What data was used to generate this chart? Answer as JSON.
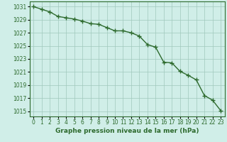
{
  "x": [
    0,
    1,
    2,
    3,
    4,
    5,
    6,
    7,
    8,
    9,
    10,
    11,
    12,
    13,
    14,
    15,
    16,
    17,
    18,
    19,
    20,
    21,
    22,
    23
  ],
  "y": [
    1031.0,
    1030.6,
    1030.2,
    1029.5,
    1029.3,
    1029.1,
    1028.8,
    1028.4,
    1028.3,
    1027.8,
    1027.3,
    1027.3,
    1027.0,
    1026.5,
    1025.2,
    1024.8,
    1022.5,
    1022.4,
    1021.1,
    1020.5,
    1019.8,
    1017.4,
    1016.7,
    1015.1
  ],
  "line_color": "#2d6a2d",
  "marker": "+",
  "marker_size": 4,
  "line_width": 1.0,
  "bg_color": "#d0eee8",
  "grid_color": "#a0c8bc",
  "ylabel_ticks": [
    1015,
    1017,
    1019,
    1021,
    1023,
    1025,
    1027,
    1029,
    1031
  ],
  "xlabel": "Graphe pression niveau de la mer (hPa)",
  "ylim": [
    1014.2,
    1031.8
  ],
  "xlim": [
    -0.5,
    23.5
  ],
  "xlabel_fontsize": 6.5,
  "tick_fontsize": 5.5,
  "label_color": "#2d6a2d",
  "spine_color": "#2d6a2d"
}
